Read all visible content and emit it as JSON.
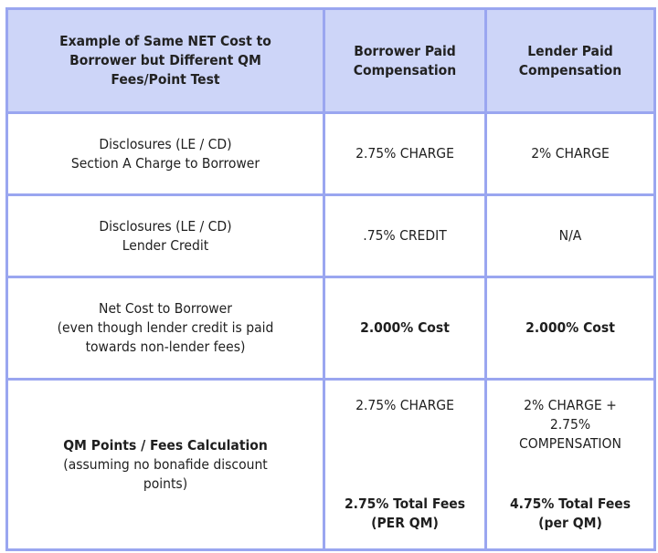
{
  "header": {
    "col1": [
      "Example of Same NET Cost to",
      "Borrower but Different QM",
      "Fees/Point Test"
    ],
    "col2": [
      "Borrower Paid",
      "Compensation"
    ],
    "col3": [
      "Lender Paid",
      "Compensation"
    ]
  },
  "rows": [
    {
      "label": [
        "Disclosures (LE / CD)",
        "Section A Charge to Borrower"
      ],
      "borrower": "2.75% CHARGE",
      "lender": "2% CHARGE"
    },
    {
      "label": [
        "Disclosures (LE / CD)",
        "Lender Credit"
      ],
      "borrower": ".75% CREDIT",
      "lender": "N/A"
    },
    {
      "label": [
        "Net Cost to Borrower",
        "(even though lender credit is paid",
        "towards non-lender fees)"
      ],
      "borrower": "2.000% Cost",
      "lender": "2.000% Cost"
    },
    {
      "label_bold": "QM Points / Fees Calculation",
      "label": [
        "(assuming no bonafide discount",
        "points)"
      ],
      "borrower_top": "2.75% CHARGE",
      "borrower_bottom": [
        "2.75% Total Fees",
        "(PER QM)"
      ],
      "lender_top": [
        "2% CHARGE +",
        "2.75%",
        "COMPENSATION"
      ],
      "lender_bottom": [
        "4.75% Total Fees",
        "(per QM)"
      ]
    }
  ],
  "colors": {
    "header_bg": "#cdd5f8",
    "border": "#9aa6f0"
  }
}
